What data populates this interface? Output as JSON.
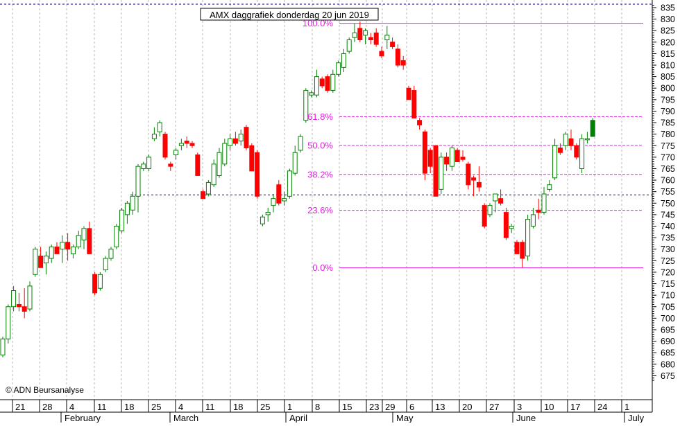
{
  "chart_data": {
    "type": "candlestick",
    "title": "AMX daggrafiek donderdag 20 jun 2019",
    "copyright": "© ADN Beursanalyse",
    "y_axis": {
      "min": 670,
      "max": 837,
      "ticks": [
        675,
        680,
        685,
        690,
        695,
        700,
        705,
        710,
        715,
        720,
        725,
        730,
        735,
        740,
        745,
        750,
        755,
        760,
        765,
        770,
        775,
        780,
        785,
        790,
        795,
        800,
        805,
        810,
        815,
        820,
        825,
        830,
        835
      ]
    },
    "x_tick_labels": [
      "21",
      "28",
      "4",
      "11",
      "18",
      "25",
      "4",
      "11",
      "18",
      "25",
      "1",
      "8",
      "15",
      "23",
      "29",
      "6",
      "13",
      "20",
      "27",
      "3",
      "10",
      "17",
      "24",
      "1"
    ],
    "month_labels": [
      "February",
      "March",
      "April",
      "May",
      "June",
      "July"
    ],
    "fibonacci": {
      "low": 721.9,
      "high": 828.2,
      "levels": [
        {
          "label": "100.0%",
          "value": 828.2
        },
        {
          "label": "61.8%",
          "value": 787.6
        },
        {
          "label": "50.0%",
          "value": 775.1
        },
        {
          "label": "38.2%",
          "value": 762.5
        },
        {
          "label": "23.6%",
          "value": 746.9
        },
        {
          "label": "0.0%",
          "value": 721.9
        }
      ]
    },
    "horizontal_lines": [
      {
        "style": "dashed-navy",
        "value": 836.5
      },
      {
        "style": "dashed-navy",
        "value": 753.6
      }
    ],
    "colors": {
      "up": "#008000",
      "down": "#ff0000",
      "fib": "#e020e0",
      "navy": "#000080",
      "grid": "#b8b8b8"
    },
    "candles": [
      {
        "o": 684,
        "h": 692,
        "l": 683,
        "c": 691
      },
      {
        "o": 691,
        "h": 706,
        "l": 689,
        "c": 705
      },
      {
        "o": 705,
        "h": 714,
        "l": 703,
        "c": 712
      },
      {
        "o": 706,
        "h": 711,
        "l": 703,
        "c": 705
      },
      {
        "o": 705,
        "h": 713,
        "l": 700,
        "c": 703
      },
      {
        "o": 704,
        "h": 716,
        "l": 703,
        "c": 714
      },
      {
        "o": 719,
        "h": 731,
        "l": 718,
        "c": 730
      },
      {
        "o": 727,
        "h": 731,
        "l": 722,
        "c": 722
      },
      {
        "o": 724,
        "h": 729,
        "l": 719,
        "c": 727
      },
      {
        "o": 726,
        "h": 732,
        "l": 724,
        "c": 731
      },
      {
        "o": 731,
        "h": 733,
        "l": 728,
        "c": 728
      },
      {
        "o": 730,
        "h": 736,
        "l": 724,
        "c": 733
      },
      {
        "o": 733,
        "h": 737,
        "l": 725,
        "c": 730
      },
      {
        "o": 728,
        "h": 732,
        "l": 726,
        "c": 731
      },
      {
        "o": 731,
        "h": 738,
        "l": 730,
        "c": 736
      },
      {
        "o": 734,
        "h": 740,
        "l": 730,
        "c": 739
      },
      {
        "o": 739,
        "h": 742,
        "l": 728,
        "c": 728
      },
      {
        "o": 719,
        "h": 720,
        "l": 710,
        "c": 711
      },
      {
        "o": 713,
        "h": 720,
        "l": 712,
        "c": 719
      },
      {
        "o": 721,
        "h": 727,
        "l": 720,
        "c": 726
      },
      {
        "o": 726,
        "h": 731,
        "l": 725,
        "c": 730
      },
      {
        "o": 731,
        "h": 741,
        "l": 730,
        "c": 740
      },
      {
        "o": 738,
        "h": 748,
        "l": 737,
        "c": 747
      },
      {
        "o": 745,
        "h": 751,
        "l": 741,
        "c": 750
      },
      {
        "o": 747,
        "h": 755,
        "l": 745,
        "c": 753
      },
      {
        "o": 753,
        "h": 767,
        "l": 746,
        "c": 766
      },
      {
        "o": 765,
        "h": 768,
        "l": 764,
        "c": 767
      },
      {
        "o": 765,
        "h": 771,
        "l": 764,
        "c": 770
      },
      {
        "o": 778,
        "h": 783,
        "l": 777,
        "c": 780
      },
      {
        "o": 781,
        "h": 786,
        "l": 779,
        "c": 785
      },
      {
        "o": 780,
        "h": 781,
        "l": 769,
        "c": 770
      },
      {
        "o": 767,
        "h": 768,
        "l": 764,
        "c": 766
      },
      {
        "o": 771,
        "h": 774,
        "l": 769,
        "c": 773
      },
      {
        "o": 775,
        "h": 778,
        "l": 773,
        "c": 776
      },
      {
        "o": 777,
        "h": 779,
        "l": 774,
        "c": 776
      },
      {
        "o": 776,
        "h": 777,
        "l": 774,
        "c": 775
      },
      {
        "o": 771,
        "h": 772,
        "l": 762,
        "c": 762
      },
      {
        "o": 755,
        "h": 756,
        "l": 752,
        "c": 752
      },
      {
        "o": 754,
        "h": 760,
        "l": 753,
        "c": 759
      },
      {
        "o": 758,
        "h": 769,
        "l": 757,
        "c": 767
      },
      {
        "o": 762,
        "h": 774,
        "l": 761,
        "c": 772
      },
      {
        "o": 767,
        "h": 778,
        "l": 766,
        "c": 776
      },
      {
        "o": 775,
        "h": 780,
        "l": 773,
        "c": 778
      },
      {
        "o": 778,
        "h": 781,
        "l": 775,
        "c": 776
      },
      {
        "o": 777,
        "h": 782,
        "l": 775,
        "c": 780
      },
      {
        "o": 783,
        "h": 784,
        "l": 773,
        "c": 774
      },
      {
        "o": 775,
        "h": 776,
        "l": 764,
        "c": 764
      },
      {
        "o": 772,
        "h": 773,
        "l": 752,
        "c": 753
      },
      {
        "o": 741,
        "h": 745,
        "l": 740,
        "c": 744
      },
      {
        "o": 745,
        "h": 748,
        "l": 742,
        "c": 746
      },
      {
        "o": 749,
        "h": 754,
        "l": 746,
        "c": 752
      },
      {
        "o": 758,
        "h": 760,
        "l": 749,
        "c": 750
      },
      {
        "o": 751,
        "h": 755,
        "l": 749,
        "c": 752
      },
      {
        "o": 753,
        "h": 765,
        "l": 752,
        "c": 764
      },
      {
        "o": 763,
        "h": 775,
        "l": 762,
        "c": 772
      },
      {
        "o": 773,
        "h": 780,
        "l": 772,
        "c": 779
      },
      {
        "o": 786,
        "h": 800,
        "l": 785,
        "c": 799
      },
      {
        "o": 797,
        "h": 799,
        "l": 796,
        "c": 798
      },
      {
        "o": 797,
        "h": 808,
        "l": 796,
        "c": 805
      },
      {
        "o": 804,
        "h": 805,
        "l": 800,
        "c": 801
      },
      {
        "o": 805,
        "h": 806,
        "l": 798,
        "c": 799
      },
      {
        "o": 799,
        "h": 808,
        "l": 798,
        "c": 806
      },
      {
        "o": 806,
        "h": 812,
        "l": 805,
        "c": 811
      },
      {
        "o": 809,
        "h": 817,
        "l": 807,
        "c": 815
      },
      {
        "o": 816,
        "h": 822,
        "l": 815,
        "c": 821
      },
      {
        "o": 822,
        "h": 828,
        "l": 820,
        "c": 824
      },
      {
        "o": 826,
        "h": 829,
        "l": 820,
        "c": 821
      },
      {
        "o": 823,
        "h": 826,
        "l": 819,
        "c": 825
      },
      {
        "o": 822,
        "h": 824,
        "l": 819,
        "c": 821
      },
      {
        "o": 824,
        "h": 826,
        "l": 818,
        "c": 819
      },
      {
        "o": 816,
        "h": 818,
        "l": 813,
        "c": 814
      },
      {
        "o": 821,
        "h": 827,
        "l": 817,
        "c": 823
      },
      {
        "o": 820,
        "h": 822,
        "l": 817,
        "c": 818
      },
      {
        "o": 817,
        "h": 819,
        "l": 809,
        "c": 810
      },
      {
        "o": 812,
        "h": 814,
        "l": 808,
        "c": 810
      },
      {
        "o": 800,
        "h": 801,
        "l": 795,
        "c": 795
      },
      {
        "o": 799,
        "h": 801,
        "l": 787,
        "c": 787
      },
      {
        "o": 786,
        "h": 787,
        "l": 782,
        "c": 784
      },
      {
        "o": 781,
        "h": 782,
        "l": 760,
        "c": 763
      },
      {
        "o": 773,
        "h": 774,
        "l": 763,
        "c": 766
      },
      {
        "o": 775,
        "h": 775,
        "l": 753,
        "c": 753
      },
      {
        "o": 756,
        "h": 772,
        "l": 754,
        "c": 770
      },
      {
        "o": 770,
        "h": 772,
        "l": 764,
        "c": 767
      },
      {
        "o": 766,
        "h": 775,
        "l": 764,
        "c": 774
      },
      {
        "o": 773,
        "h": 774,
        "l": 768,
        "c": 768
      },
      {
        "o": 770,
        "h": 773,
        "l": 768,
        "c": 769
      },
      {
        "o": 767,
        "h": 768,
        "l": 756,
        "c": 758
      },
      {
        "o": 761,
        "h": 762,
        "l": 753,
        "c": 760
      },
      {
        "o": 759,
        "h": 766,
        "l": 755,
        "c": 757
      },
      {
        "o": 749,
        "h": 750,
        "l": 739,
        "c": 740
      },
      {
        "o": 745,
        "h": 750,
        "l": 744,
        "c": 749
      },
      {
        "o": 751,
        "h": 754,
        "l": 746,
        "c": 754
      },
      {
        "o": 752,
        "h": 756,
        "l": 749,
        "c": 750
      },
      {
        "o": 746,
        "h": 748,
        "l": 734,
        "c": 735
      },
      {
        "o": 739,
        "h": 741,
        "l": 737,
        "c": 740
      },
      {
        "o": 733,
        "h": 734,
        "l": 728,
        "c": 728
      },
      {
        "o": 733,
        "h": 734,
        "l": 722,
        "c": 726
      },
      {
        "o": 727,
        "h": 745,
        "l": 725,
        "c": 743
      },
      {
        "o": 740,
        "h": 748,
        "l": 739,
        "c": 745
      },
      {
        "o": 747,
        "h": 752,
        "l": 743,
        "c": 746
      },
      {
        "o": 746,
        "h": 757,
        "l": 745,
        "c": 754
      },
      {
        "o": 756,
        "h": 760,
        "l": 755,
        "c": 758
      },
      {
        "o": 761,
        "h": 778,
        "l": 760,
        "c": 775
      },
      {
        "o": 774,
        "h": 776,
        "l": 771,
        "c": 772
      },
      {
        "o": 775,
        "h": 781,
        "l": 773,
        "c": 780
      },
      {
        "o": 778,
        "h": 782,
        "l": 773,
        "c": 775
      },
      {
        "o": 775,
        "h": 776,
        "l": 769,
        "c": 770
      },
      {
        "o": 765,
        "h": 780,
        "l": 763,
        "c": 778
      },
      {
        "o": 778,
        "h": 781,
        "l": 776,
        "c": 778
      },
      {
        "o": 779,
        "h": 787,
        "l": 779,
        "c": 786
      }
    ]
  }
}
